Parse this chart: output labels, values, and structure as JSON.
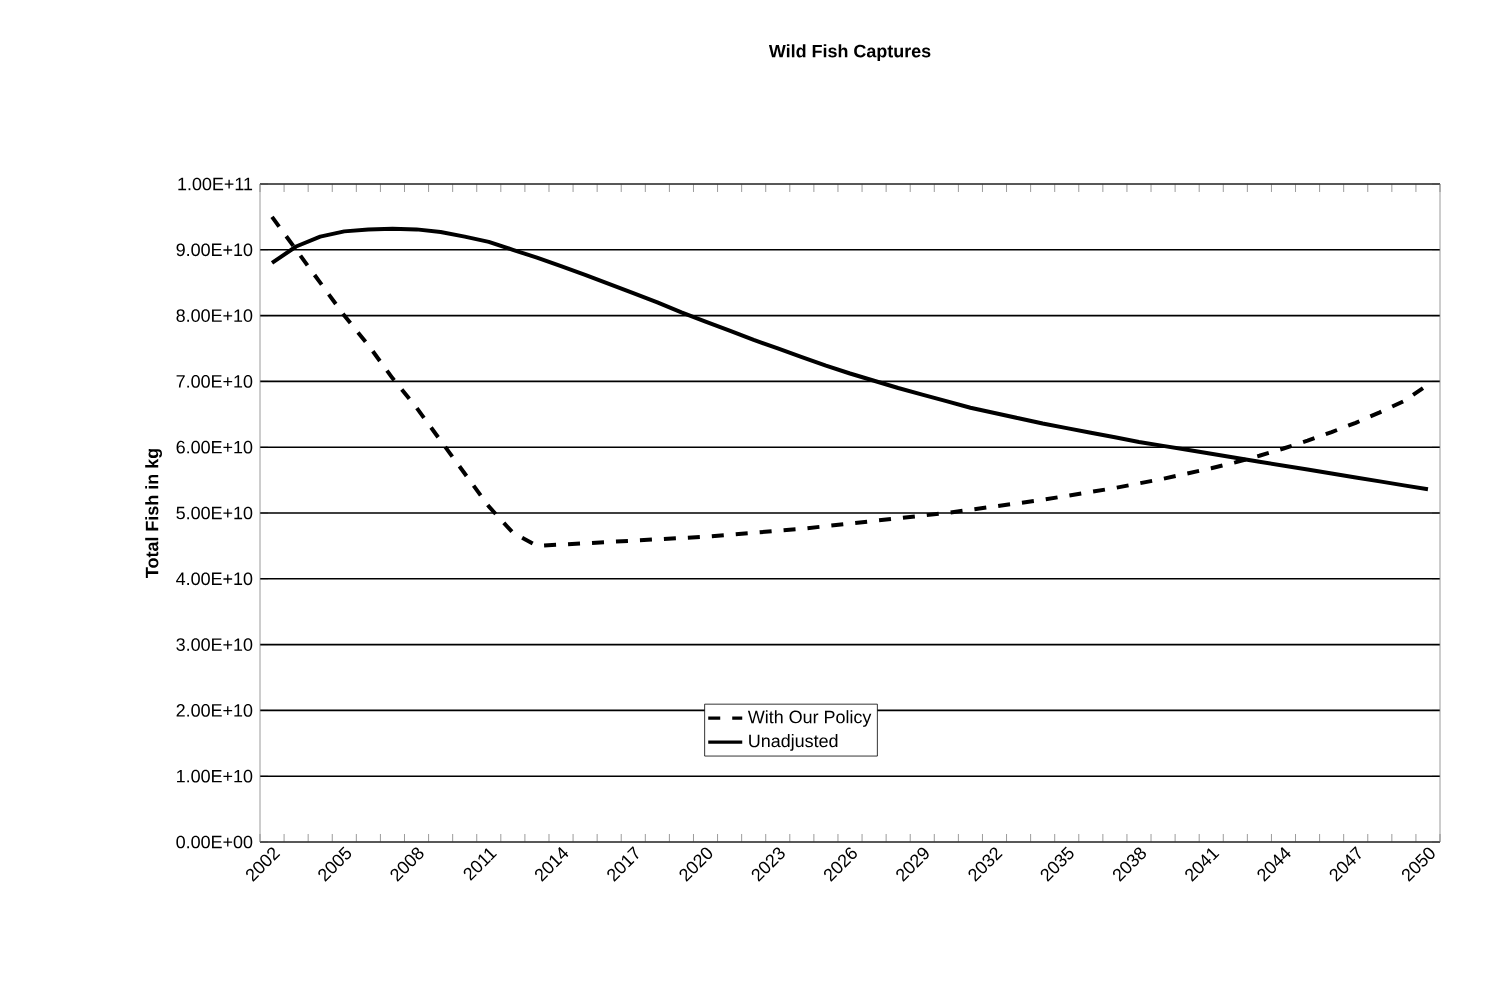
{
  "chart_data": {
    "type": "line",
    "title": "Wild Fish Captures",
    "ylabel": "Total Fish in kg",
    "categories": [
      "2002",
      null,
      null,
      "2005",
      null,
      null,
      "2008",
      null,
      null,
      "2011",
      null,
      null,
      "2014",
      null,
      null,
      "2017",
      null,
      null,
      "2020",
      null,
      null,
      "2023",
      null,
      null,
      "2026",
      null,
      null,
      "2029",
      null,
      null,
      "2032",
      null,
      null,
      "2035",
      null,
      null,
      "2038",
      null,
      null,
      "2041",
      null,
      null,
      "2044",
      null,
      null,
      "2047",
      null,
      null,
      "2050"
    ],
    "series": [
      {
        "name": "With Our Policy",
        "color": "#000000",
        "line_style": "dashed",
        "values": [
          95000000000.0,
          90000000000.0,
          85000000000.0,
          80000000000.0,
          75500000000.0,
          70500000000.0,
          66000000000.0,
          61000000000.0,
          56000000000.0,
          51000000000.0,
          47000000000.0,
          45000000000.0,
          45200000000.0,
          45400000000.0,
          45600000000.0,
          45800000000.0,
          46000000000.0,
          46200000000.0,
          46400000000.0,
          46700000000.0,
          47000000000.0,
          47300000000.0,
          47600000000.0,
          48000000000.0,
          48400000000.0,
          48800000000.0,
          49200000000.0,
          49600000000.0,
          50000000000.0,
          50500000000.0,
          51000000000.0,
          51500000000.0,
          52000000000.0,
          52600000000.0,
          53200000000.0,
          53800000000.0,
          54500000000.0,
          55200000000.0,
          56000000000.0,
          56800000000.0,
          57700000000.0,
          58700000000.0,
          59800000000.0,
          61000000000.0,
          62300000000.0,
          63700000000.0,
          65300000000.0,
          67000000000.0,
          69500000000.0
        ]
      },
      {
        "name": "Unadjusted",
        "color": "#000000",
        "line_style": "solid",
        "values": [
          88000000000.0,
          90500000000.0,
          92000000000.0,
          92800000000.0,
          93100000000.0,
          93200000000.0,
          93100000000.0,
          92700000000.0,
          92000000000.0,
          91200000000.0,
          90000000000.0,
          88800000000.0,
          87500000000.0,
          86200000000.0,
          84800000000.0,
          83400000000.0,
          82000000000.0,
          80500000000.0,
          79100000000.0,
          77700000000.0,
          76300000000.0,
          75000000000.0,
          73700000000.0,
          72400000000.0,
          71200000000.0,
          70100000000.0,
          69000000000.0,
          68000000000.0,
          67000000000.0,
          66000000000.0,
          65200000000.0,
          64400000000.0,
          63600000000.0,
          62900000000.0,
          62200000000.0,
          61500000000.0,
          60800000000.0,
          60200000000.0,
          59600000000.0,
          59000000000.0,
          58400000000.0,
          57800000000.0,
          57200000000.0,
          56600000000.0,
          56000000000.0,
          55400000000.0,
          54800000000.0,
          54200000000.0,
          53600000000.0
        ]
      }
    ],
    "ylim": [
      0,
      100000000000.0
    ],
    "yticks": [
      {
        "value": 0,
        "label": "0.00E+00"
      },
      {
        "value": 10000000000.0,
        "label": "1.00E+10"
      },
      {
        "value": 20000000000.0,
        "label": "2.00E+10"
      },
      {
        "value": 30000000000.0,
        "label": "3.00E+10"
      },
      {
        "value": 40000000000.0,
        "label": "4.00E+10"
      },
      {
        "value": 50000000000.0,
        "label": "5.00E+10"
      },
      {
        "value": 60000000000.0,
        "label": "6.00E+10"
      },
      {
        "value": 70000000000.0,
        "label": "7.00E+10"
      },
      {
        "value": 80000000000.0,
        "label": "8.00E+10"
      },
      {
        "value": 90000000000.0,
        "label": "9.00E+10"
      },
      {
        "value": 100000000000.0,
        "label": "1.00E+11"
      }
    ],
    "grid": "y",
    "legend": "bottom",
    "marker": "none"
  }
}
